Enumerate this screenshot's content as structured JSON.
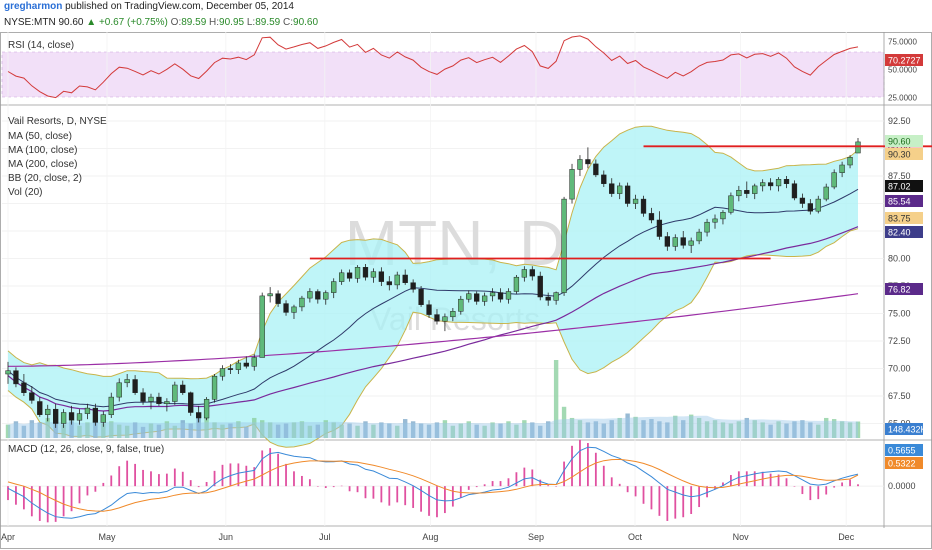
{
  "header": {
    "user": "gregharmon",
    "published": "published on TradingView.com, December 05, 2014",
    "symbol": "NYSE:MTN",
    "last": "90.60",
    "change": "▲ +0.67 (+0.75%)",
    "o_label": "O:",
    "o": "89.59",
    "h_label": "H:",
    "h": "90.95",
    "l_label": "L:",
    "l": "89.59",
    "c_label": "C:",
    "c": "90.60"
  },
  "rsi_label": "RSI (14, close)",
  "macd_label": "MACD (12, 26, close, 9, false, true)",
  "legend": [
    "Vail Resorts, D, NYSE",
    "MA (50, close)",
    "MA (100, close)",
    "MA (200, close)",
    "BB (20, close, 2)",
    "Vol (20)"
  ],
  "watermark": {
    "symbol": "MTN, D",
    "name": "Vail Resorts"
  },
  "colors": {
    "up": "#5fb97a",
    "down": "#1f1f1f",
    "bb_fill": "#a9f2f5",
    "bb_line": "#c8b44a",
    "ma50": "#2f3a6a",
    "ma100": "#7a2a9c",
    "ma200": "#9b2fa6",
    "resistance": "#e01f1f",
    "rsi": "#d33a3a",
    "macd_line": "#3a8ad8",
    "signal_line": "#f08a2a",
    "hist": "#e050a0",
    "rsi_band": "#f2e0f8"
  },
  "chart_data": [
    {
      "type": "candlestick",
      "title": "Vail Resorts, D, NYSE",
      "x_ticks": [
        "Apr",
        "May",
        "Jun",
        "Jul",
        "Aug",
        "Sep",
        "Oct",
        "Nov",
        "Dec"
      ],
      "y_ticks": [
        "92.50",
        "90.00",
        "87.50",
        "85.00",
        "82.50",
        "80.00",
        "77.50",
        "75.00",
        "72.50",
        "70.00",
        "67.50",
        "65.00"
      ],
      "ylim": [
        63.5,
        93.5
      ],
      "ohlc": [
        [
          69.5,
          70.6,
          68.6,
          69.8
        ],
        [
          69.8,
          70.1,
          68.3,
          68.6
        ],
        [
          68.7,
          69.5,
          67.5,
          67.8
        ],
        [
          67.8,
          68.4,
          66.8,
          67.1
        ],
        [
          67.0,
          67.4,
          65.6,
          65.8
        ],
        [
          65.8,
          66.7,
          65.2,
          66.3
        ],
        [
          66.3,
          66.8,
          64.6,
          65.0
        ],
        [
          65.0,
          66.3,
          64.6,
          66.0
        ],
        [
          66.0,
          66.6,
          64.9,
          65.3
        ],
        [
          65.3,
          66.3,
          64.9,
          65.9
        ],
        [
          65.9,
          66.8,
          65.4,
          66.4
        ],
        [
          66.4,
          66.8,
          64.8,
          65.1
        ],
        [
          65.1,
          66.1,
          64.7,
          65.8
        ],
        [
          65.8,
          67.8,
          65.5,
          67.4
        ],
        [
          67.4,
          69.1,
          67.0,
          68.7
        ],
        [
          68.7,
          69.5,
          68.3,
          69.0
        ],
        [
          69.0,
          69.4,
          67.6,
          67.8
        ],
        [
          67.8,
          68.2,
          66.7,
          67.0
        ],
        [
          67.0,
          67.7,
          66.3,
          67.4
        ],
        [
          67.4,
          67.8,
          66.6,
          66.8
        ],
        [
          66.8,
          67.3,
          66.1,
          67.0
        ],
        [
          67.0,
          68.8,
          66.7,
          68.5
        ],
        [
          68.5,
          68.9,
          67.6,
          67.8
        ],
        [
          67.8,
          67.9,
          65.7,
          66.0
        ],
        [
          66.0,
          66.6,
          65.1,
          65.5
        ],
        [
          65.5,
          67.4,
          65.3,
          67.2
        ],
        [
          67.2,
          69.5,
          66.9,
          69.3
        ],
        [
          69.3,
          70.3,
          68.9,
          70.0
        ],
        [
          70.0,
          70.4,
          69.5,
          69.9
        ],
        [
          69.9,
          70.8,
          69.5,
          70.5
        ],
        [
          70.5,
          71.1,
          70.0,
          70.2
        ],
        [
          70.2,
          71.3,
          69.8,
          71.0
        ],
        [
          71.0,
          76.9,
          71.0,
          76.6
        ],
        [
          76.6,
          77.4,
          76.0,
          76.8
        ],
        [
          76.8,
          77.1,
          75.6,
          75.9
        ],
        [
          75.9,
          76.2,
          74.8,
          75.1
        ],
        [
          75.1,
          75.8,
          74.5,
          75.6
        ],
        [
          75.6,
          76.6,
          75.2,
          76.4
        ],
        [
          76.4,
          77.3,
          76.0,
          77.0
        ],
        [
          77.0,
          77.2,
          75.9,
          76.3
        ],
        [
          76.3,
          77.1,
          75.8,
          76.9
        ],
        [
          76.9,
          78.2,
          76.4,
          77.9
        ],
        [
          77.9,
          79.0,
          77.6,
          78.7
        ],
        [
          78.7,
          79.0,
          77.9,
          78.2
        ],
        [
          78.2,
          79.4,
          77.8,
          79.2
        ],
        [
          79.2,
          79.5,
          78.0,
          78.3
        ],
        [
          78.3,
          79.1,
          77.8,
          78.8
        ],
        [
          78.8,
          79.2,
          77.5,
          77.9
        ],
        [
          77.9,
          78.4,
          77.1,
          77.6
        ],
        [
          77.6,
          78.8,
          77.2,
          78.5
        ],
        [
          78.5,
          79.0,
          77.6,
          77.8
        ],
        [
          77.8,
          78.1,
          76.9,
          77.2
        ],
        [
          77.2,
          77.5,
          75.6,
          75.8
        ],
        [
          75.8,
          76.2,
          74.6,
          74.9
        ],
        [
          74.9,
          75.4,
          74.0,
          74.3
        ],
        [
          74.3,
          75.0,
          73.4,
          74.7
        ],
        [
          74.7,
          75.5,
          74.3,
          75.2
        ],
        [
          75.2,
          76.6,
          74.9,
          76.3
        ],
        [
          76.3,
          77.1,
          76.0,
          76.8
        ],
        [
          76.8,
          77.0,
          75.8,
          76.1
        ],
        [
          76.1,
          76.9,
          75.7,
          76.6
        ],
        [
          76.6,
          77.3,
          76.1,
          76.9
        ],
        [
          76.9,
          77.3,
          76.0,
          76.3
        ],
        [
          76.3,
          77.3,
          75.9,
          77.0
        ],
        [
          77.0,
          78.5,
          76.8,
          78.3
        ],
        [
          78.3,
          79.3,
          77.9,
          79.0
        ],
        [
          79.0,
          79.3,
          78.0,
          78.4
        ],
        [
          78.4,
          78.8,
          76.2,
          76.5
        ],
        [
          76.5,
          76.9,
          75.7,
          76.2
        ],
        [
          76.2,
          77.0,
          75.8,
          76.9
        ],
        [
          76.9,
          85.6,
          76.6,
          85.4
        ],
        [
          85.4,
          88.6,
          85.0,
          88.1
        ],
        [
          88.1,
          89.4,
          87.5,
          89.0
        ],
        [
          89.0,
          90.1,
          88.2,
          88.6
        ],
        [
          88.6,
          89.0,
          87.4,
          87.6
        ],
        [
          87.6,
          88.0,
          86.5,
          86.8
        ],
        [
          86.8,
          87.3,
          85.6,
          85.9
        ],
        [
          85.9,
          86.9,
          85.4,
          86.6
        ],
        [
          86.6,
          86.9,
          84.7,
          85.0
        ],
        [
          85.0,
          85.8,
          84.5,
          85.4
        ],
        [
          85.4,
          85.7,
          83.8,
          84.1
        ],
        [
          84.1,
          84.6,
          83.2,
          83.5
        ],
        [
          83.5,
          84.3,
          81.7,
          82.0
        ],
        [
          82.0,
          82.4,
          80.7,
          81.1
        ],
        [
          81.1,
          82.2,
          80.7,
          81.9
        ],
        [
          81.9,
          82.5,
          80.9,
          81.2
        ],
        [
          81.2,
          81.9,
          80.5,
          81.6
        ],
        [
          81.6,
          82.7,
          81.3,
          82.4
        ],
        [
          82.4,
          83.6,
          82.0,
          83.3
        ],
        [
          83.3,
          84.0,
          82.7,
          83.6
        ],
        [
          83.6,
          84.4,
          83.1,
          84.2
        ],
        [
          84.2,
          86.0,
          84.0,
          85.7
        ],
        [
          85.7,
          86.6,
          85.2,
          86.2
        ],
        [
          86.2,
          87.0,
          85.5,
          85.9
        ],
        [
          85.9,
          86.8,
          85.4,
          86.6
        ],
        [
          86.6,
          87.2,
          86.1,
          86.9
        ],
        [
          86.9,
          87.3,
          86.2,
          86.6
        ],
        [
          86.6,
          87.4,
          86.1,
          87.2
        ],
        [
          87.2,
          87.5,
          86.4,
          86.8
        ],
        [
          86.8,
          87.1,
          85.3,
          85.5
        ],
        [
          85.5,
          85.9,
          84.6,
          85.0
        ],
        [
          85.0,
          85.4,
          84.0,
          84.3
        ],
        [
          84.3,
          85.7,
          84.1,
          85.4
        ],
        [
          85.4,
          86.8,
          85.2,
          86.5
        ],
        [
          86.5,
          88.1,
          86.3,
          87.8
        ],
        [
          87.8,
          88.8,
          87.4,
          88.5
        ],
        [
          88.5,
          89.4,
          88.2,
          89.2
        ],
        [
          89.59,
          90.95,
          89.59,
          90.6
        ]
      ],
      "overlay_tags": [
        {
          "name": "last price",
          "value": 90.6
        },
        {
          "name": "resistance",
          "value": 90.3
        },
        {
          "name": "MA (50, close)",
          "value": 87.02
        },
        {
          "name": "BB lower",
          "value": 85.54
        },
        {
          "name": "MA (100, close)",
          "value": 83.75
        },
        {
          "name": "MA (200, close)",
          "value": 82.4
        },
        {
          "name": "MA (200, close) 2",
          "value": 76.82
        }
      ],
      "resistance_levels": [
        {
          "value": 80.0,
          "from_bar": 38,
          "to_bar": 96
        },
        {
          "value": 90.2,
          "from_bar": 80,
          "to_bar": 118
        }
      ]
    },
    {
      "type": "bar",
      "title": "Vol (20)",
      "last_tag": "148.432K",
      "volume_k": [
        120,
        150,
        110,
        160,
        140,
        180,
        130,
        120,
        150,
        110,
        140,
        190,
        130,
        150,
        120,
        110,
        140,
        100,
        130,
        120,
        150,
        110,
        160,
        130,
        200,
        230,
        140,
        120,
        130,
        150,
        100,
        180,
        160,
        140,
        120,
        130,
        140,
        150,
        110,
        120,
        160,
        140,
        120,
        130,
        110,
        150,
        120,
        140,
        130,
        110,
        170,
        150,
        130,
        120,
        140,
        160,
        110,
        130,
        150,
        120,
        110,
        140,
        130,
        150,
        120,
        160,
        140,
        110,
        150,
        700,
        280,
        180,
        160,
        140,
        150,
        130,
        160,
        180,
        220,
        190,
        160,
        170,
        150,
        140,
        200,
        160,
        210,
        180,
        150,
        160,
        140,
        130,
        150,
        180,
        160,
        140,
        120,
        150,
        130,
        150,
        160,
        140,
        120,
        180,
        170,
        150,
        140,
        148
      ]
    },
    {
      "type": "line",
      "title": "RSI (14, close)",
      "y_ticks": [
        "75.0000",
        "50.0000",
        "25.0000"
      ],
      "ylim": [
        20,
        80
      ],
      "last_tag": "70.2727",
      "values": [
        48.2,
        44.1,
        42.3,
        35.4,
        30.1,
        26.3,
        24.8,
        30.5,
        29.1,
        35.2,
        34.4,
        31.8,
        38.6,
        46.3,
        52.1,
        51.2,
        48.3,
        45.1,
        48.9,
        46.0,
        50.2,
        55.1,
        50.3,
        44.4,
        41.9,
        48.6,
        56.2,
        60.1,
        59.4,
        61.0,
        58.9,
        63.2,
        78.4,
        78.9,
        72.1,
        68.3,
        70.2,
        72.4,
        74.0,
        68.9,
        71.1,
        74.3,
        76.9,
        70.1,
        72.5,
        65.3,
        68.9,
        63.0,
        60.2,
        65.7,
        61.3,
        58.4,
        52.0,
        48.1,
        45.6,
        50.4,
        53.2,
        58.4,
        60.6,
        56.2,
        58.8,
        60.9,
        56.4,
        62.1,
        68.3,
        71.5,
        66.0,
        53.2,
        51.0,
        57.3,
        75.8,
        79.1,
        80.1,
        77.2,
        70.3,
        64.8,
        58.1,
        62.0,
        55.4,
        58.1,
        52.3,
        49.0,
        45.3,
        42.1,
        47.5,
        44.3,
        48.0,
        53.1,
        56.4,
        57.2,
        58.5,
        63.1,
        64.0,
        60.3,
        63.6,
        64.2,
        61.8,
        64.9,
        60.1,
        52.4,
        48.3,
        45.0,
        52.6,
        58.1,
        63.4,
        66.2,
        68.9,
        70.27
      ]
    },
    {
      "type": "line",
      "title": "MACD (12, 26, close, 9, false, true)",
      "y_ticks": [
        "0.0000"
      ],
      "ylim": [
        -1.7,
        2.0
      ],
      "tags": [
        "0.5655",
        "0.5322"
      ],
      "macd": [
        -0.1,
        -0.3,
        -0.5,
        -0.8,
        -1.05,
        -1.28,
        -1.45,
        -1.5,
        -1.52,
        -1.45,
        -1.35,
        -1.3,
        -1.12,
        -0.9,
        -0.6,
        -0.35,
        -0.3,
        -0.35,
        -0.3,
        -0.32,
        -0.25,
        -0.05,
        -0.05,
        -0.2,
        -0.35,
        -0.22,
        0.1,
        0.35,
        0.5,
        0.62,
        0.68,
        0.75,
        1.3,
        1.55,
        1.6,
        1.5,
        1.42,
        1.38,
        1.35,
        1.2,
        1.15,
        1.16,
        1.2,
        1.05,
        1.0,
        0.8,
        0.72,
        0.55,
        0.38,
        0.36,
        0.2,
        0.02,
        -0.2,
        -0.45,
        -0.65,
        -0.7,
        -0.68,
        -0.55,
        -0.4,
        -0.35,
        -0.28,
        -0.18,
        -0.15,
        -0.05,
        0.15,
        0.35,
        0.4,
        0.22,
        0.1,
        0.08,
        0.75,
        1.3,
        1.68,
        1.85,
        1.82,
        1.65,
        1.45,
        1.32,
        1.1,
        0.95,
        0.7,
        0.45,
        0.15,
        -0.15,
        -0.28,
        -0.42,
        -0.5,
        -0.45,
        -0.3,
        -0.15,
        0.02,
        0.25,
        0.42,
        0.5,
        0.58,
        0.65,
        0.68,
        0.72,
        0.68,
        0.5,
        0.3,
        0.1,
        0.05,
        0.1,
        0.25,
        0.38,
        0.48,
        0.57
      ],
      "signal": [
        0.2,
        0.1,
        0.0,
        -0.15,
        -0.3,
        -0.5,
        -0.68,
        -0.85,
        -0.98,
        -1.08,
        -1.15,
        -1.18,
        -1.19,
        -1.13,
        -1.03,
        -0.9,
        -0.78,
        -0.7,
        -0.62,
        -0.58,
        -0.52,
        -0.43,
        -0.36,
        -0.33,
        -0.33,
        -0.31,
        -0.23,
        -0.11,
        0.01,
        0.13,
        0.24,
        0.34,
        0.53,
        0.73,
        0.9,
        1.02,
        1.1,
        1.16,
        1.2,
        1.2,
        1.19,
        1.18,
        1.19,
        1.16,
        1.13,
        1.06,
        0.99,
        0.9,
        0.8,
        0.71,
        0.61,
        0.49,
        0.35,
        0.19,
        0.02,
        -0.12,
        -0.24,
        -0.3,
        -0.32,
        -0.33,
        -0.32,
        -0.29,
        -0.26,
        -0.22,
        -0.15,
        -0.05,
        0.04,
        0.08,
        0.08,
        0.08,
        0.22,
        0.43,
        0.68,
        0.92,
        1.1,
        1.21,
        1.26,
        1.27,
        1.23,
        1.17,
        1.08,
        0.95,
        0.79,
        0.6,
        0.42,
        0.25,
        0.1,
        0.0,
        -0.06,
        -0.08,
        -0.06,
        0.01,
        0.1,
        0.18,
        0.26,
        0.34,
        0.41,
        0.47,
        0.51,
        0.51,
        0.47,
        0.4,
        0.33,
        0.28,
        0.28,
        0.3,
        0.34,
        0.53
      ]
    }
  ]
}
